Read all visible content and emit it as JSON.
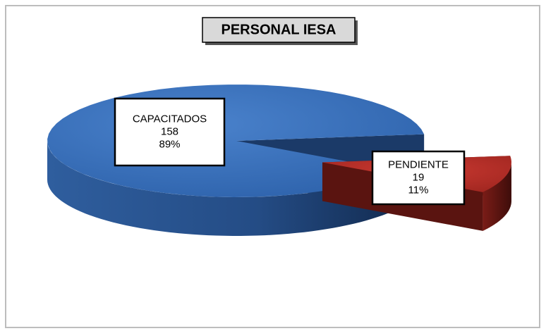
{
  "chart_data": {
    "type": "pie3d",
    "title": "PERSONAL IESA",
    "categories": [
      "CAPACITADOS",
      "PENDIENTE"
    ],
    "values": [
      158,
      19
    ],
    "percent_labels": [
      "89%",
      "11%"
    ],
    "colors": [
      "#3a6fb8",
      "#b8302a"
    ]
  }
}
